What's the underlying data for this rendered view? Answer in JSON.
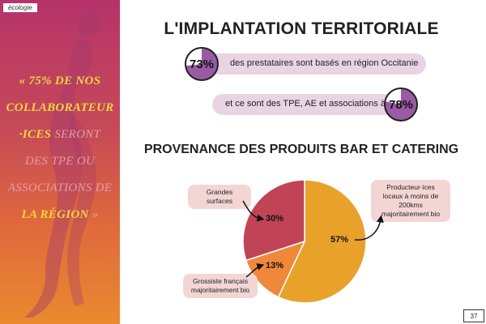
{
  "left_panel": {
    "tag": "écologie",
    "quote": {
      "line1": "« 75% DE NOS",
      "line2": "COLLABORATEUR",
      "line3_a": "·ICES",
      "line3_b": " SERONT",
      "line4": "DES TPE OU",
      "line5": "ASSOCIATIONS DE",
      "line6_a": "LA RÉGION",
      "line6_b": " »"
    }
  },
  "title": "L'IMPLANTATION TERRITORIALE",
  "stats": [
    {
      "percent": "73%",
      "value": 73,
      "text": "des prestataires sont basés en région Occitanie"
    },
    {
      "percent": "78%",
      "value": 78,
      "text": "et ce sont des TPE, AE et associations à"
    }
  ],
  "subtitle": "PROVENANCE DES PRODUITS BAR ET CATERING",
  "chart_data": {
    "type": "pie",
    "slices": [
      {
        "label": "Producteur·ices locaux à moins de 200kms majoritairement bio",
        "value": 57,
        "value_label": "57%",
        "color": "#e8a22a"
      },
      {
        "label": "Grossiste français majoritairement bio",
        "value": 13,
        "value_label": "13%",
        "color": "#f0883a"
      },
      {
        "label": "Grandes surfaces",
        "value": 30,
        "value_label": "30%",
        "color": "#c04456"
      }
    ]
  },
  "callouts": {
    "grandes_surfaces": "Grandes surfaces",
    "producteurs": "Producteur·ices locaux à moins de 200kms majoritairement bio",
    "grossiste": "Grossiste français majoritairement bio"
  },
  "page_number": "37"
}
